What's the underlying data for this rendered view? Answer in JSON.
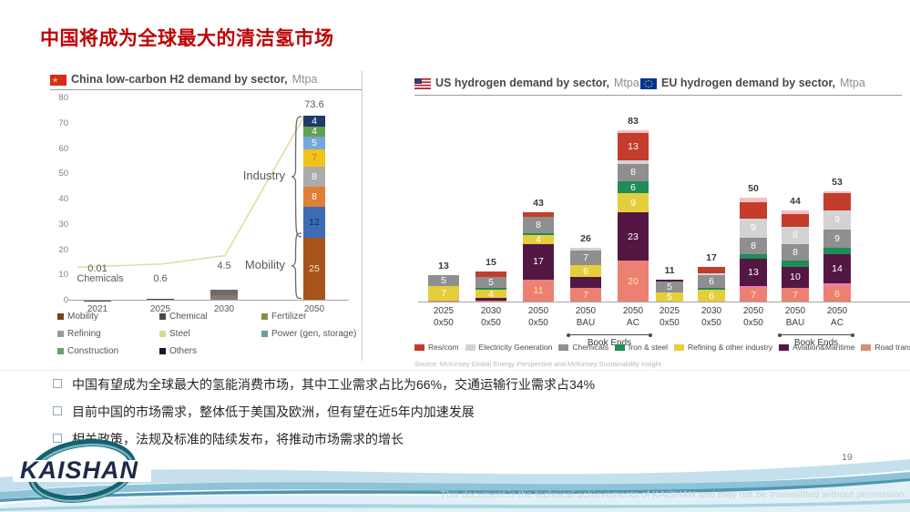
{
  "slide": {
    "title": "中国将成为全球最大的清洁氢市场",
    "page_number": "19",
    "logo_text": "KAISHAN",
    "disclaimer": "This document is the technical achievements of KAISHAN and may not be transmitted without permission"
  },
  "bullets": [
    "中国有望成为全球最大的氢能消费市场，其中工业需求占比为66%，交通运输行业需求占34%",
    "目前中国的市场需求，整体低于美国及欧洲，但有望在近5年内加速发展",
    "相关政策，法规及标准的陆续发布，将推动市场需求的增长"
  ],
  "source": "Source: McKinsey Global Energy Perspective and McKinsey Sustainability Insight",
  "right_legend": [
    {
      "label": "Res/com",
      "color": "#c43c2b"
    },
    {
      "label": "Electricity Generation",
      "color": "#d3d3d3"
    },
    {
      "label": "Chemicals",
      "color": "#8f8f8f"
    },
    {
      "label": "Iron & steel",
      "color": "#1e8c55"
    },
    {
      "label": "Refining & other industry",
      "color": "#e5ce3c"
    },
    {
      "label": "Aviation&Maritime",
      "color": "#541743"
    },
    {
      "label": "Road transport",
      "color": "#d98e76"
    }
  ],
  "chart_data": [
    {
      "id": "china",
      "type": "bar",
      "title": "China low-carbon H2 demand by sector,",
      "unit": "Mtpa",
      "ylim": [
        0,
        80
      ],
      "yticks": [
        0,
        10,
        20,
        30,
        40,
        50,
        60,
        70,
        80
      ],
      "categories": [
        "2021",
        "2025",
        "2030",
        "2050"
      ],
      "totals": [
        0.01,
        0.6,
        4.5,
        73.6
      ],
      "trend": {
        "color": "#d9e2a0",
        "points": [
          {
            "f": 0.02,
            "u": 13.2
          },
          {
            "f": 0.33,
            "u": 14.5
          },
          {
            "f": 0.56,
            "u": 17.8
          },
          {
            "f": 0.845,
            "u": 72
          }
        ]
      },
      "brackets": [
        {
          "label": "Industry",
          "from": 25,
          "to": 73.2
        },
        {
          "label": "Mobility",
          "from": 0.5,
          "to": 27
        }
      ],
      "bars": [
        {
          "category": "2021",
          "total": "0.01",
          "total_unit": 10.6,
          "sub": "Chemicals",
          "sub_unit": 6.6,
          "segments": [
            {
              "v": 0.01,
              "c": "#4a4a4a"
            }
          ]
        },
        {
          "category": "2025",
          "total": "0.6",
          "total_unit": 6.6,
          "segments": [
            {
              "v": 0.6,
              "c": "#4a4a4a"
            }
          ]
        },
        {
          "category": "2030",
          "total": "4.5",
          "total_unit": 11.6,
          "segments": [
            {
              "v": 2.2,
              "c": "#8a796c"
            },
            {
              "v": 2.3,
              "c": "#6f6a66"
            }
          ]
        },
        {
          "category": "2050",
          "total": "73.6",
          "total_unit": 75.2,
          "segments": [
            {
              "v": 25,
              "l": "25",
              "c": "#a6531c",
              "lc": "#f6e3b8"
            },
            {
              "v": 12,
              "l": "12",
              "c": "#3c6cb4",
              "lc": "#17294f"
            },
            {
              "v": 8,
              "l": "8",
              "c": "#e07e35",
              "lc": "#ffffff"
            },
            {
              "v": 8,
              "l": "8",
              "c": "#ababab",
              "lc": "#ffffff"
            },
            {
              "v": 7,
              "l": "7",
              "c": "#efc31a",
              "lc": "#e8743c"
            },
            {
              "v": 5,
              "l": "5",
              "c": "#74a7dc",
              "lc": "#ffffff"
            },
            {
              "v": 4,
              "l": "4",
              "c": "#63a04f",
              "lc": "#ffffff"
            },
            {
              "v": 4,
              "l": "4",
              "c": "#1d3a6b",
              "lc": "#ffffff"
            }
          ]
        }
      ],
      "legend": [
        {
          "label": "Mobility",
          "color": "#7b3f1e"
        },
        {
          "label": "Chemical",
          "color": "#4a4a4a"
        },
        {
          "label": "Fertilizer",
          "color": "#8e8a4e"
        },
        {
          "label": "Refining",
          "color": "#9b9b9b"
        },
        {
          "label": "Steel",
          "color": "#d6dc8d"
        },
        {
          "label": "Power (gen, storage)",
          "color": "#6d9c9c"
        },
        {
          "label": "Construction",
          "color": "#6ba06b"
        },
        {
          "label": "Others",
          "color": "#1a1a1a"
        }
      ]
    },
    {
      "id": "us",
      "type": "bar",
      "title": "US hydrogen demand by sector,",
      "unit": "Mtpa",
      "book_ends": "Book Ends",
      "bars": [
        {
          "category": [
            "2025",
            "0x50"
          ],
          "total": "13",
          "segments": [
            {
              "v": 1,
              "c": "#ec8173"
            },
            {
              "v": 7,
              "l": "7",
              "c": "#e5ce3c"
            },
            {
              "v": 5,
              "l": "5",
              "c": "#8f8f8f"
            }
          ]
        },
        {
          "category": [
            "2030",
            "0x50"
          ],
          "total": "15",
          "segments": [
            {
              "v": 1,
              "c": "#ec8173"
            },
            {
              "v": 1,
              "c": "#541743"
            },
            {
              "v": 4,
              "l": "4",
              "c": "#e5ce3c"
            },
            {
              "v": 1,
              "c": "#1e8c55"
            },
            {
              "v": 5,
              "l": "5",
              "c": "#8f8f8f"
            },
            {
              "v": 3,
              "c": "#c43c2b"
            }
          ]
        },
        {
          "category": [
            "2050",
            "0x50"
          ],
          "total": "43",
          "segments": [
            {
              "v": 11,
              "l": "11",
              "c": "#ec8173",
              "lc": "#ffe9a0"
            },
            {
              "v": 17,
              "l": "17",
              "c": "#541743"
            },
            {
              "v": 4,
              "l": "4",
              "c": "#e5ce3c"
            },
            {
              "v": 1,
              "c": "#1e8c55"
            },
            {
              "v": 8,
              "l": "8",
              "c": "#8f8f8f"
            },
            {
              "v": 2,
              "c": "#c43c2b"
            }
          ]
        },
        {
          "category": [
            "2050",
            "BAU"
          ],
          "total": "26",
          "segments": [
            {
              "v": 7,
              "l": "7",
              "c": "#ec8173",
              "lc": "#ffe9a0"
            },
            {
              "v": 5,
              "c": "#541743"
            },
            {
              "v": 6,
              "l": "6",
              "c": "#e5ce3c"
            },
            {
              "v": 7,
              "l": "7",
              "c": "#8f8f8f"
            },
            {
              "v": 1,
              "c": "#d3d3d3"
            }
          ]
        },
        {
          "category": [
            "2050",
            "AC"
          ],
          "total": "83",
          "segments": [
            {
              "v": 20,
              "l": "20",
              "c": "#ec8173",
              "lc": "#ffe9a0"
            },
            {
              "v": 23,
              "l": "23",
              "c": "#541743"
            },
            {
              "v": 9,
              "l": "9",
              "c": "#e5ce3c"
            },
            {
              "v": 6,
              "l": "6",
              "c": "#1e8c55"
            },
            {
              "v": 8,
              "l": "8",
              "c": "#8f8f8f"
            },
            {
              "v": 2,
              "c": "#d3d3d3"
            },
            {
              "v": 13,
              "l": "13",
              "c": "#c43c2b"
            },
            {
              "v": 1,
              "c": "#f6bfc0"
            }
          ]
        }
      ]
    },
    {
      "id": "eu",
      "type": "bar",
      "title": "EU hydrogen demand by sector,",
      "unit": "Mtpa",
      "book_ends": "Book Ends",
      "bars": [
        {
          "category": [
            "2025",
            "0x50"
          ],
          "total": "11",
          "segments": [
            {
              "v": 5,
              "l": "5",
              "c": "#e5ce3c"
            },
            {
              "v": 5,
              "l": "5",
              "c": "#8f8f8f"
            },
            {
              "v": 1,
              "c": "#541743"
            }
          ]
        },
        {
          "category": [
            "2030",
            "0x50"
          ],
          "total": "17",
          "segments": [
            {
              "v": 6,
              "l": "6",
              "c": "#e5ce3c"
            },
            {
              "v": 1,
              "c": "#1e8c55"
            },
            {
              "v": 6,
              "l": "6",
              "c": "#8f8f8f"
            },
            {
              "v": 1,
              "c": "#d3d3d3"
            },
            {
              "v": 3,
              "c": "#c43c2b"
            }
          ]
        },
        {
          "category": [
            "2050",
            "0x50"
          ],
          "total": "50",
          "segments": [
            {
              "v": 7,
              "l": "7",
              "c": "#ec8173",
              "lc": "#ffe9a0"
            },
            {
              "v": 1,
              "c": "#ed7bad"
            },
            {
              "v": 13,
              "l": "13",
              "c": "#541743"
            },
            {
              "v": 2,
              "c": "#1e8c55"
            },
            {
              "v": 8,
              "l": "8",
              "c": "#8f8f8f"
            },
            {
              "v": 9,
              "l": "9",
              "c": "#d3d3d3"
            },
            {
              "v": 8,
              "c": "#c43c2b"
            },
            {
              "v": 2,
              "c": "#f6bfc0"
            }
          ]
        },
        {
          "category": [
            "2050",
            "BAU"
          ],
          "total": "44",
          "segments": [
            {
              "v": 7,
              "l": "7",
              "c": "#ec8173",
              "lc": "#ffe9a0"
            },
            {
              "v": 10,
              "l": "10",
              "c": "#541743"
            },
            {
              "v": 3,
              "c": "#1e8c55"
            },
            {
              "v": 8,
              "l": "8",
              "c": "#8f8f8f"
            },
            {
              "v": 8,
              "l": "8",
              "c": "#d3d3d3"
            },
            {
              "v": 6,
              "c": "#c43c2b"
            },
            {
              "v": 2,
              "c": "#f6bfc0"
            }
          ]
        },
        {
          "category": [
            "2050",
            "AC"
          ],
          "total": "53",
          "segments": [
            {
              "v": 8,
              "l": "8",
              "c": "#ec8173",
              "lc": "#ffe9a0"
            },
            {
              "v": 1,
              "c": "#ed7bad"
            },
            {
              "v": 14,
              "l": "14",
              "c": "#541743"
            },
            {
              "v": 3,
              "c": "#1e8c55"
            },
            {
              "v": 9,
              "l": "9",
              "c": "#8f8f8f"
            },
            {
              "v": 9,
              "l": "9",
              "c": "#d3d3d3"
            },
            {
              "v": 8,
              "c": "#c43c2b"
            },
            {
              "v": 1,
              "c": "#f6bfc0"
            }
          ]
        }
      ]
    }
  ]
}
